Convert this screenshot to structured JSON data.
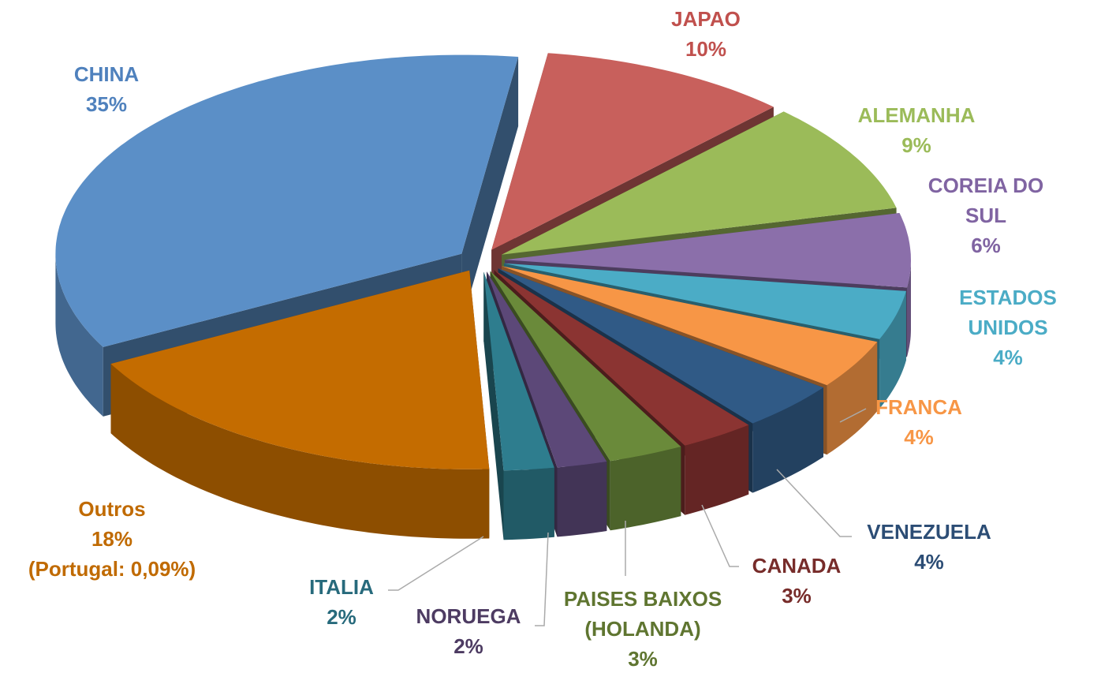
{
  "chart_data": {
    "type": "pie",
    "categories": [
      "JAPAO",
      "ALEMANHA",
      "COREIA DO SUL",
      "ESTADOS UNIDOS",
      "FRANCA",
      "VENEZUELA",
      "CANADA",
      "PAISES BAIXOS (HOLANDA)",
      "NORUEGA",
      "ITALIA",
      "Outros",
      "CHINA"
    ],
    "values": [
      10,
      9,
      6,
      4,
      4,
      4,
      3,
      3,
      2,
      2,
      18,
      35
    ],
    "value_labels": [
      "10%",
      "9%",
      "6%",
      "4%",
      "4%",
      "4%",
      "3%",
      "3%",
      "2%",
      "2%",
      "18%",
      "35%"
    ],
    "colors": [
      "#c8605c",
      "#9bbb59",
      "#8b6faa",
      "#4bacc6",
      "#f79646",
      "#305a86",
      "#8b3432",
      "#6a8a3a",
      "#5c4878",
      "#2e7d8e",
      "#c46c00",
      "#5b8fc7"
    ],
    "annotation": "(Portugal: 0,09%)"
  }
}
